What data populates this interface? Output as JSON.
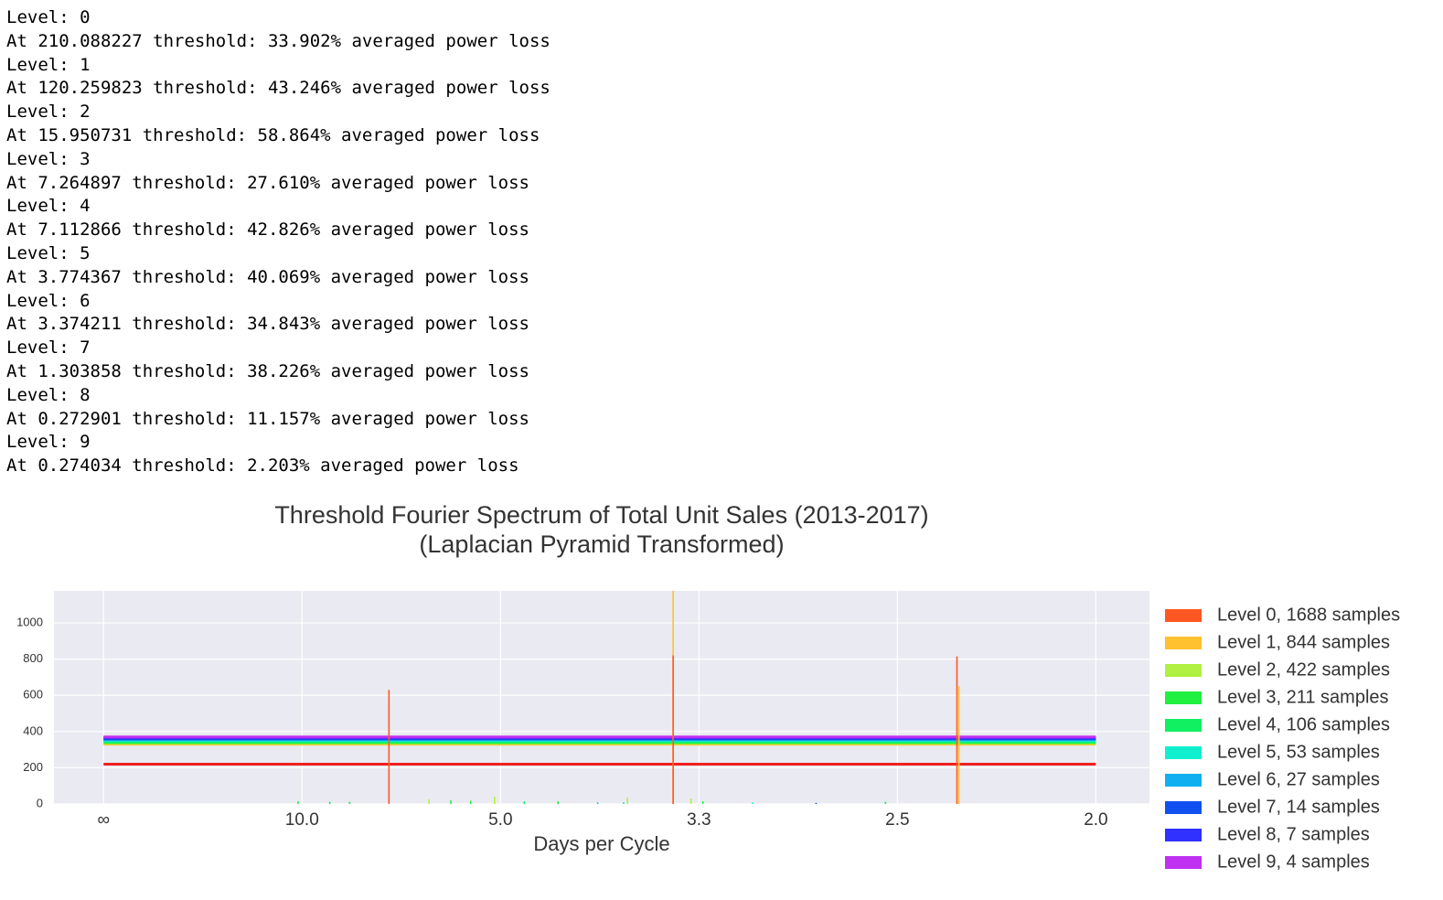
{
  "output": {
    "lines": [
      "Level: 0",
      "At 210.088227 threshold: 33.902% averaged power loss",
      "Level: 1",
      "At 120.259823 threshold: 43.246% averaged power loss",
      "Level: 2",
      "At 15.950731 threshold: 58.864% averaged power loss",
      "Level: 3",
      "At 7.264897 threshold: 27.610% averaged power loss",
      "Level: 4",
      "At 7.112866 threshold: 42.826% averaged power loss",
      "Level: 5",
      "At 3.774367 threshold: 40.069% averaged power loss",
      "Level: 6",
      "At 3.374211 threshold: 34.843% averaged power loss",
      "Level: 7",
      "At 1.303858 threshold: 38.226% averaged power loss",
      "Level: 8",
      "At 0.272901 threshold: 11.157% averaged power loss",
      "Level: 9",
      "At 0.274034 threshold: 2.203% averaged power loss"
    ]
  },
  "chart_data": {
    "type": "spectrum",
    "title": "Threshold Fourier Spectrum of Total Unit Sales (2013-2017)",
    "subtitle": "(Laplacian Pyramid Transformed)",
    "x_label": "Days per Cycle",
    "xlim": [
      -0.025,
      0.527
    ],
    "ylim": [
      0,
      1177
    ],
    "xticks": [
      {
        "value": 0,
        "label": "∞"
      },
      {
        "value": 0.1,
        "label": "10.0"
      },
      {
        "value": 0.2,
        "label": "5.0"
      },
      {
        "value": 0.3,
        "label": "3.3"
      },
      {
        "value": 0.4,
        "label": "2.5"
      },
      {
        "value": 0.5,
        "label": "2.0"
      }
    ],
    "yticks": [
      0,
      200,
      400,
      600,
      800,
      1000
    ],
    "grid": true,
    "hline_x": [
      0,
      0.5
    ],
    "series": [
      {
        "name": "Level 0, 1688 samples",
        "color": "#ff5722",
        "hline": 220,
        "x": [
          0.1438,
          0.287,
          0.43
        ],
        "values": [
          630,
          820,
          815
        ]
      },
      {
        "name": "Level 1, 844 samples",
        "color": "#ffc130",
        "hline": 330,
        "x": [
          0.287,
          0.431
        ],
        "values": [
          1177,
          650
        ]
      },
      {
        "name": "Level 2, 422 samples",
        "color": "#b0f040",
        "hline": 335,
        "x": [
          0.164,
          0.197,
          0.264,
          0.296
        ],
        "values": [
          25,
          40,
          35,
          30
        ]
      },
      {
        "name": "Level 3, 211 samples",
        "color": "#20f040",
        "hline": 340,
        "x": [
          0.098,
          0.175,
          0.185,
          0.229,
          0.302
        ],
        "values": [
          15,
          20,
          18,
          15,
          15
        ]
      },
      {
        "name": "Level 4, 106 samples",
        "color": "#10f060",
        "hline": 345,
        "x": [
          0.114,
          0.124,
          0.212,
          0.394
        ],
        "values": [
          12,
          12,
          15,
          12
        ]
      },
      {
        "name": "Level 5, 53 samples",
        "color": "#10f0d0",
        "hline": 350,
        "x": [
          0.262,
          0.327
        ],
        "values": [
          10,
          8
        ]
      },
      {
        "name": "Level 6, 27 samples",
        "color": "#10b0f0",
        "hline": 355,
        "x": [
          0.249
        ],
        "values": [
          8
        ]
      },
      {
        "name": "Level 7, 14 samples",
        "color": "#1050f0",
        "hline": 360,
        "x": [
          0.359
        ],
        "values": [
          6
        ]
      },
      {
        "name": "Level 8, 7 samples",
        "color": "#3030ff",
        "hline": 365,
        "x": [],
        "values": []
      },
      {
        "name": "Level 9, 4 samples",
        "color": "#c030f0",
        "hline": 370,
        "x": [],
        "values": []
      }
    ]
  }
}
